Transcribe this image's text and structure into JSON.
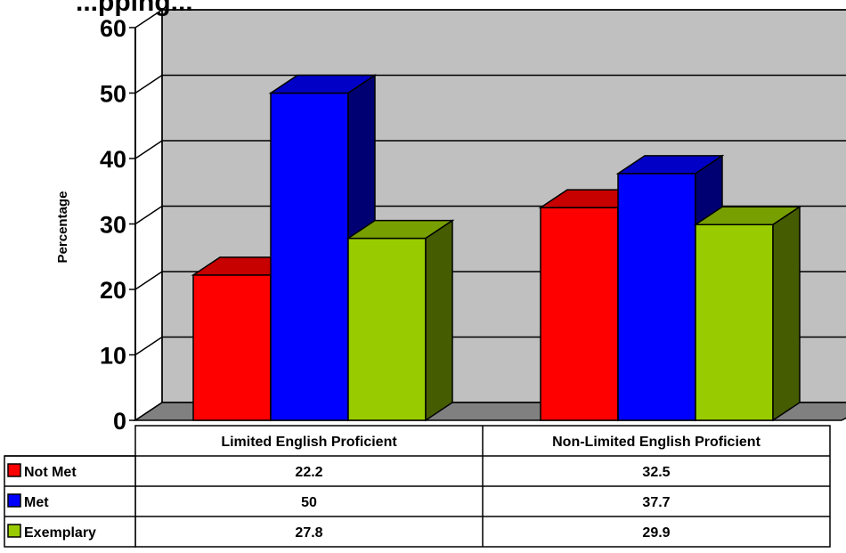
{
  "chart_data": {
    "type": "bar",
    "title": "...pping...",
    "ylabel": "Percentage",
    "ylim": [
      0,
      60
    ],
    "yticks": [
      0,
      10,
      20,
      30,
      40,
      50,
      60
    ],
    "grid": true,
    "three_d": true,
    "legend": "data-table",
    "categories": [
      "Limited English Proficient",
      "Non-Limited English Proficient"
    ],
    "series": [
      {
        "name": "Not Met",
        "color": "#ff0000",
        "values": [
          22.2,
          32.5
        ],
        "labels": [
          "22.2",
          "32.5"
        ]
      },
      {
        "name": "Met",
        "color": "#0000ff",
        "values": [
          50,
          37.7
        ],
        "labels": [
          "50",
          "37.7"
        ]
      },
      {
        "name": "Exemplary",
        "color": "#99cc00",
        "values": [
          27.8,
          29.9
        ],
        "labels": [
          "27.8",
          "29.9"
        ]
      }
    ]
  }
}
